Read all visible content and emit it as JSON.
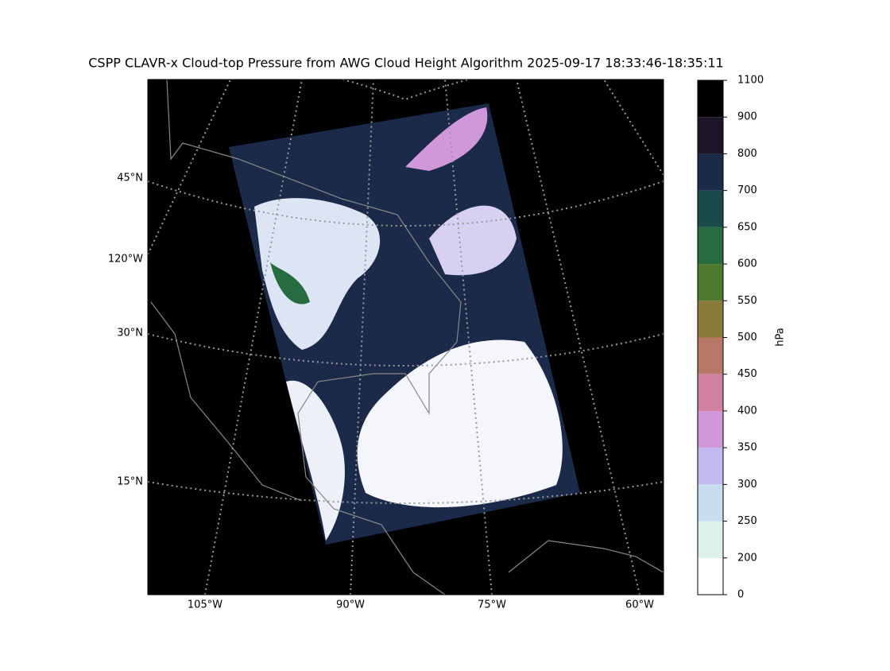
{
  "title": "CSPP CLAVR-x Cloud-top Pressure from AWG Cloud Height Algorithm 2025-09-17 18:33:46-18:35:11",
  "map": {
    "lat_labels": [
      "45°N",
      "120°W",
      "30°N",
      "15°N"
    ],
    "lon_labels": [
      "105°W",
      "90°W",
      "75°W",
      "60°W"
    ]
  },
  "colorbar": {
    "label": "hPa",
    "ticks": [
      0,
      200,
      250,
      300,
      350,
      400,
      450,
      500,
      550,
      600,
      650,
      700,
      800,
      900,
      1100
    ],
    "colors": [
      "#ffffff",
      "#dcf0ec",
      "#c8dcf0",
      "#c4b8f0",
      "#d098d8",
      "#d080a0",
      "#b87868",
      "#8a7a3a",
      "#4e7a30",
      "#276b40",
      "#1a4a4a",
      "#1c2a4a",
      "#1e1428",
      "#000000"
    ]
  }
}
